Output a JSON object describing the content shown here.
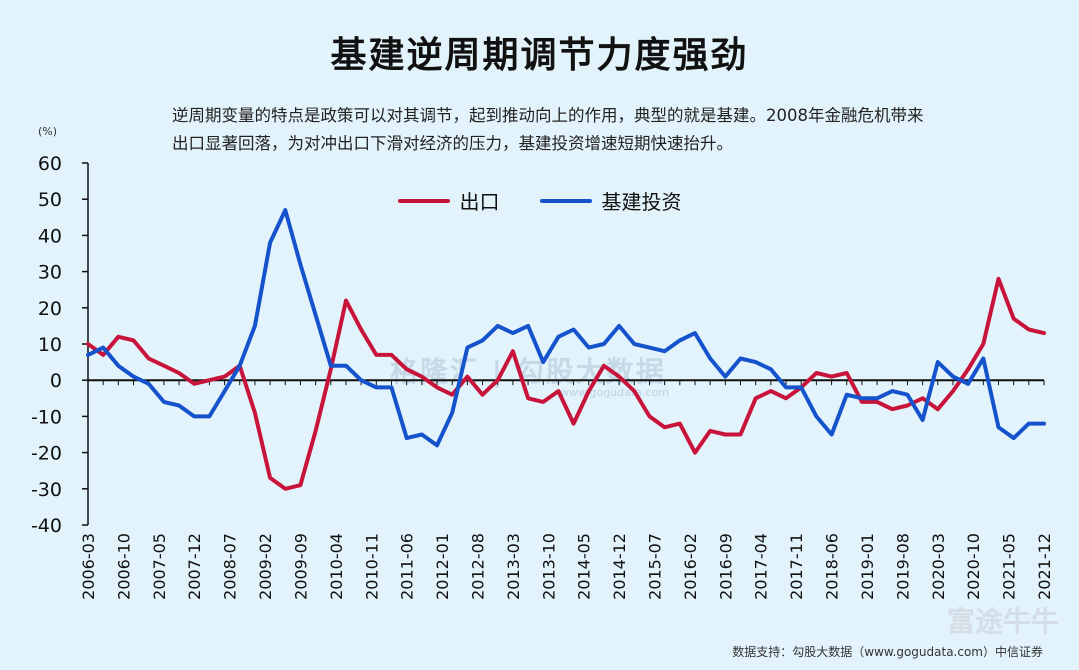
{
  "title": "基建逆周期调节力度强劲",
  "subtitle": "逆周期变量的特点是政策可以对其调节，起到推动向上的作用，典型的就是基建。2008年金融危机带来出口显著回落，为对冲出口下滑对经济的压力，基建投资增速短期快速抬升。",
  "footer": "数据支持：勾股大数据（www.gogudata.com）中信证券",
  "watermark": {
    "center": "格隆汇 | 勾股大数据",
    "center_url": "www.gogudata.com",
    "corner": "富途牛牛"
  },
  "colors": {
    "export": "#c8143a",
    "infra": "#1553cc",
    "background": "#e3f3fb"
  },
  "chart_data": {
    "type": "line",
    "ylabel": "(%)",
    "ylim": [
      -40,
      60
    ],
    "yticks": [
      60,
      50,
      40,
      30,
      20,
      10,
      0,
      -10,
      -20,
      -30,
      -40
    ],
    "x": [
      "2006-03",
      "2006-06",
      "2006-09",
      "2006-12",
      "2007-03",
      "2007-06",
      "2007-09",
      "2007-12",
      "2008-03",
      "2008-06",
      "2008-09",
      "2008-12",
      "2009-03",
      "2009-06",
      "2009-09",
      "2009-12",
      "2010-03",
      "2010-06",
      "2010-09",
      "2010-12",
      "2011-03",
      "2011-06",
      "2011-09",
      "2011-12",
      "2012-03",
      "2012-06",
      "2012-09",
      "2012-12",
      "2013-03",
      "2013-06",
      "2013-09",
      "2013-12",
      "2014-03",
      "2014-06",
      "2014-09",
      "2014-12",
      "2015-03",
      "2015-06",
      "2015-09",
      "2015-12",
      "2016-03",
      "2016-06",
      "2016-09",
      "2016-12",
      "2017-03",
      "2017-06",
      "2017-09",
      "2017-12",
      "2018-03",
      "2018-06",
      "2018-09",
      "2018-12",
      "2019-03",
      "2019-06",
      "2019-09",
      "2019-12",
      "2020-03",
      "2020-06",
      "2020-09",
      "2020-12",
      "2021-03",
      "2021-06",
      "2021-09",
      "2021-12"
    ],
    "xtick_labels": [
      "2006-03",
      "2006-10",
      "2007-05",
      "2007-12",
      "2008-07",
      "2009-02",
      "2009-09",
      "2010-04",
      "2010-11",
      "2011-06",
      "2012-01",
      "2012-08",
      "2013-03",
      "2013-10",
      "2014-05",
      "2014-12",
      "2015-07",
      "2016-02",
      "2016-09",
      "2017-04",
      "2017-11",
      "2018-06",
      "2019-01",
      "2019-08",
      "2020-03",
      "2020-10",
      "2021-05",
      "2021-12"
    ],
    "series": [
      {
        "name": "出口",
        "values": [
          10,
          7,
          12,
          11,
          6,
          4,
          2,
          -1,
          0,
          1,
          4,
          -9,
          -27,
          -30,
          -29,
          -14,
          3,
          22,
          14,
          7,
          7,
          3,
          1,
          -2,
          -4,
          1,
          -4,
          0,
          8,
          -5,
          -6,
          -3,
          -12,
          -3,
          4,
          1,
          -3,
          -10,
          -13,
          -12,
          -20,
          -14,
          -15,
          -15,
          -5,
          -3,
          -5,
          -2,
          2,
          1,
          2,
          -6,
          -6,
          -8,
          -7,
          -5,
          -8,
          -3,
          3,
          10,
          28,
          17,
          14,
          13
        ]
      },
      {
        "name": "基建投资",
        "values": [
          7,
          9,
          4,
          1,
          -1,
          -6,
          -7,
          -10,
          -10,
          -3,
          4,
          15,
          38,
          47,
          32,
          18,
          4,
          4,
          0,
          -2,
          -2,
          -16,
          -15,
          -18,
          -9,
          9,
          11,
          15,
          13,
          15,
          5,
          12,
          14,
          9,
          10,
          15,
          10,
          9,
          8,
          11,
          13,
          6,
          1,
          6,
          5,
          3,
          -2,
          -2,
          -10,
          -15,
          -4,
          -5,
          -5,
          -3,
          -4,
          -11,
          5,
          1,
          -1,
          6,
          -13,
          -16,
          -12,
          -12
        ]
      }
    ],
    "legend": "top-center",
    "grid": false
  }
}
